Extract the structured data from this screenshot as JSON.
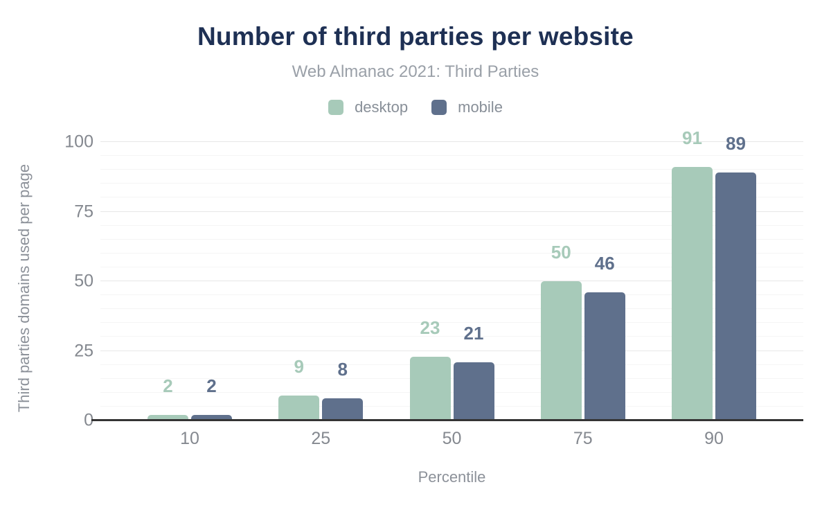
{
  "page": {
    "background": "#ffffff"
  },
  "colors": {
    "title": "#1e3054",
    "subtitle": "#9aa0a8",
    "tick_label": "#84888f",
    "axis_label": "#8c9199",
    "legend_label": "#888f98",
    "axis_line": "#343434",
    "grid_major": "#e7e7e7",
    "grid_minor": "#f5f5f5",
    "desktop": "#a7cab9",
    "mobile": "#5f708c"
  },
  "chart_data": {
    "type": "bar",
    "title": "Number of third parties per website",
    "subtitle": "Web Almanac 2021: Third Parties",
    "categories": [
      "10",
      "25",
      "50",
      "75",
      "90"
    ],
    "series": [
      {
        "name": "desktop",
        "color": "#a7cab9",
        "values": [
          2,
          9,
          23,
          50,
          91
        ]
      },
      {
        "name": "mobile",
        "color": "#5f708c",
        "values": [
          2,
          8,
          21,
          46,
          89
        ]
      }
    ],
    "xlabel": "Percentile",
    "ylabel": "Third parties domains used per page",
    "ylim": [
      0,
      100
    ],
    "yticks": [
      0,
      25,
      50,
      75,
      100
    ],
    "minor_grid_step": 5,
    "grid": "horizontal",
    "legend_position": "top",
    "value_labels": true
  }
}
